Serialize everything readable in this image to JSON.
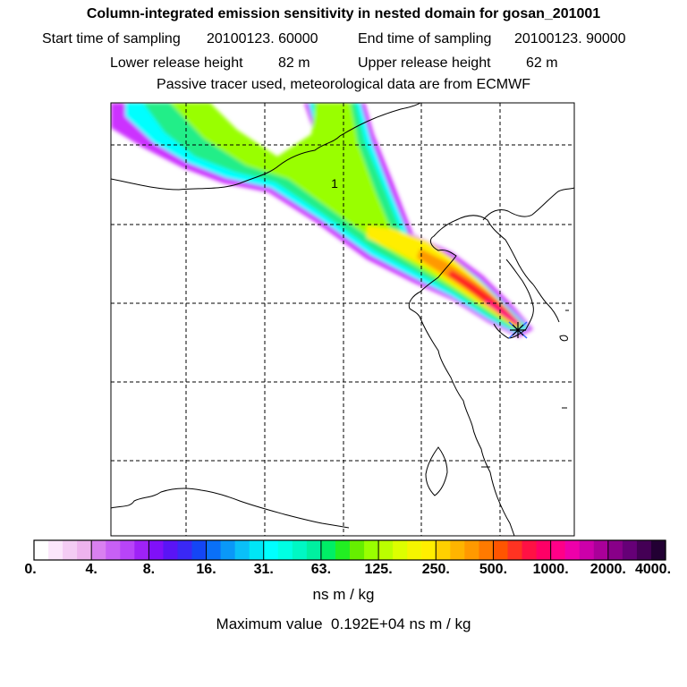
{
  "header": {
    "title": "Column-integrated emission sensitivity in nested domain for gosan_201001",
    "start_label": "Start time of sampling",
    "start_value": "20100123. 60000",
    "end_label": "End time of sampling",
    "end_value": "20100123. 90000",
    "lower_label": "Lower release height",
    "lower_value": "82 m",
    "upper_label": "Upper release height",
    "upper_value": "62 m",
    "tracer_line": "Passive tracer used, meteorological data are from ECMWF"
  },
  "map": {
    "marker_label": "1",
    "plume_colors": [
      "#cc33ff",
      "#00ffff",
      "#22ee88",
      "#99ff00",
      "#ffee00",
      "#ff9900",
      "#ff2222",
      "#ff0088"
    ],
    "release_marker": "asterisk-icon"
  },
  "colorbar": {
    "labels": [
      "0.",
      "4.",
      "8.",
      "16.",
      "31.",
      "63.",
      "125.",
      "250.",
      "500.",
      "1000.",
      "2000.",
      "4000."
    ],
    "colors": [
      "#ffffff",
      "#fbe6fb",
      "#f4ccf4",
      "#eeb3ee",
      "#d980f0",
      "#c860f5",
      "#b844f8",
      "#9f22f7",
      "#8010f8",
      "#5a14f5",
      "#3a28f5",
      "#1446f5",
      "#0a70f8",
      "#0a98f8",
      "#0ac0f8",
      "#00e6f6",
      "#00ffff",
      "#00ffe4",
      "#00f8c4",
      "#00f0a0",
      "#00ee66",
      "#22ee22",
      "#66ee00",
      "#99ff00",
      "#bbff00",
      "#ddff00",
      "#f5f500",
      "#ffee00",
      "#ffd000",
      "#ffb400",
      "#ff9900",
      "#ff7a00",
      "#ff5500",
      "#ff3322",
      "#ff1144",
      "#ff0066",
      "#ff0088",
      "#ee00aa",
      "#cc00aa",
      "#aa0099",
      "#880088",
      "#660077",
      "#440055",
      "#220033"
    ],
    "units": "ns m / kg",
    "max_label": "Maximum value",
    "max_value": "0.192E+04 ns m / kg"
  }
}
